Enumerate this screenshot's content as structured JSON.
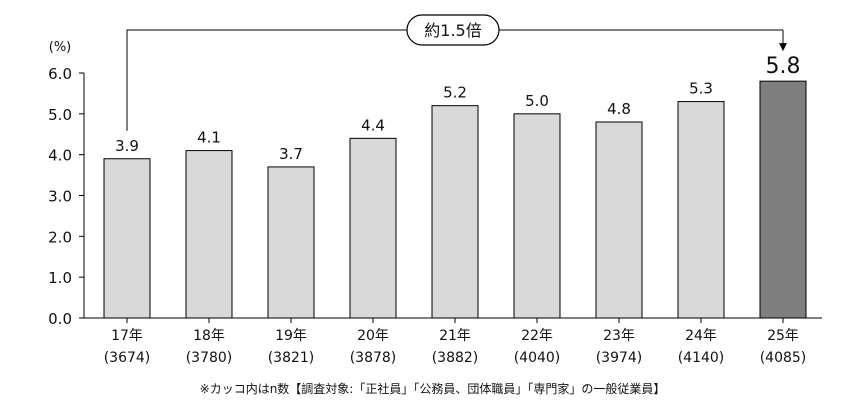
{
  "chart_data": {
    "type": "bar",
    "unit_label": "(%)",
    "categories": [
      "17年",
      "18年",
      "19年",
      "20年",
      "21年",
      "22年",
      "23年",
      "24年",
      "25年"
    ],
    "sample_sizes": [
      "(3674)",
      "(3780)",
      "(3821)",
      "(3878)",
      "(3882)",
      "(4040)",
      "(3974)",
      "(4140)",
      "(4085)"
    ],
    "values": [
      3.9,
      4.1,
      3.7,
      4.4,
      5.2,
      5.0,
      4.8,
      5.3,
      5.8
    ],
    "value_labels": [
      "3.9",
      "4.1",
      "3.7",
      "4.4",
      "5.2",
      "5.0",
      "4.8",
      "5.3",
      "5.8"
    ],
    "y_ticks": [
      "0.0",
      "1.0",
      "2.0",
      "3.0",
      "4.0",
      "5.0",
      "6.0"
    ],
    "ylim": [
      0,
      6
    ],
    "annotation": "約1.5倍",
    "bar_color": "#d9d9d9",
    "highlight_color": "#7f7f7f",
    "highlight_index": 8,
    "grid": false
  },
  "footnote": "※カッコ内はn数【調査対象:「正社員」「公務員、団体職員」「専門家」の一般従業員】"
}
